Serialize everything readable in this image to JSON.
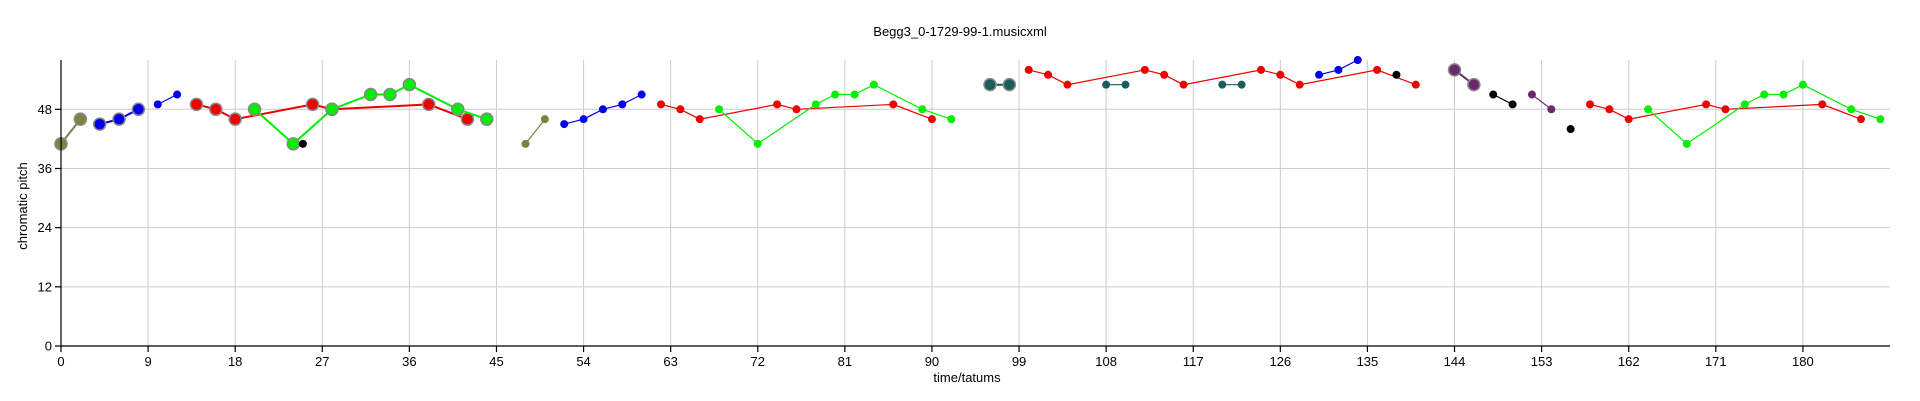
{
  "chart_data": {
    "type": "scatter",
    "title": "Begg3_0-1729-99-1.musicxml",
    "xlabel": "time/tatums",
    "ylabel": "chromatic pitch",
    "xlim": [
      0,
      189
    ],
    "ylim": [
      0,
      58
    ],
    "xticks": [
      0,
      9,
      18,
      27,
      36,
      45,
      54,
      63,
      72,
      81,
      90,
      99,
      108,
      117,
      126,
      135,
      144,
      153,
      162,
      171,
      180
    ],
    "yticks": [
      0,
      12,
      24,
      36,
      48
    ],
    "grid": true,
    "colors": {
      "olive": "#808040",
      "blue": "#0000ee",
      "red": "#ee0000",
      "green": "#00ee00",
      "black": "#000000",
      "teal": "#1a5c5c",
      "purple": "#6a2a6a"
    },
    "series": [
      {
        "color": "olive",
        "size": "large",
        "points": [
          [
            0,
            41
          ],
          [
            2,
            46
          ]
        ]
      },
      {
        "color": "blue",
        "size": "large",
        "points": [
          [
            4,
            45
          ],
          [
            6,
            46
          ],
          [
            8,
            48
          ]
        ]
      },
      {
        "color": "blue",
        "size": "small",
        "points": [
          [
            10,
            49
          ],
          [
            12,
            51
          ]
        ]
      },
      {
        "color": "red",
        "size": "large",
        "points": [
          [
            14,
            49
          ],
          [
            16,
            48
          ],
          [
            18,
            46
          ],
          [
            26,
            49
          ],
          [
            28,
            48
          ],
          [
            38,
            49
          ],
          [
            42,
            46
          ]
        ]
      },
      {
        "color": "green",
        "size": "large",
        "points": [
          [
            20,
            48
          ],
          [
            24,
            41
          ],
          [
            28,
            48
          ],
          [
            32,
            51
          ],
          [
            34,
            51
          ],
          [
            36,
            53
          ],
          [
            41,
            48
          ],
          [
            44,
            46
          ]
        ]
      },
      {
        "color": "black",
        "size": "small",
        "points": [
          [
            25,
            41
          ]
        ]
      },
      {
        "color": "olive",
        "size": "small",
        "points": [
          [
            48,
            41
          ],
          [
            50,
            46
          ]
        ]
      },
      {
        "color": "blue",
        "size": "small",
        "points": [
          [
            52,
            45
          ],
          [
            54,
            46
          ],
          [
            56,
            48
          ],
          [
            58,
            49
          ],
          [
            60,
            51
          ]
        ]
      },
      {
        "color": "red",
        "size": "small",
        "points": [
          [
            62,
            49
          ],
          [
            64,
            48
          ],
          [
            66,
            46
          ],
          [
            74,
            49
          ],
          [
            76,
            48
          ],
          [
            86,
            49
          ],
          [
            90,
            46
          ]
        ]
      },
      {
        "color": "green",
        "size": "small",
        "points": [
          [
            68,
            48
          ],
          [
            72,
            41
          ],
          [
            78,
            49
          ],
          [
            80,
            51
          ],
          [
            82,
            51
          ],
          [
            84,
            53
          ],
          [
            89,
            48
          ],
          [
            92,
            46
          ]
        ]
      },
      {
        "color": "teal",
        "size": "large",
        "points": [
          [
            96,
            53
          ],
          [
            98,
            53
          ]
        ]
      },
      {
        "color": "red",
        "size": "small",
        "points": [
          [
            100,
            56
          ],
          [
            102,
            55
          ],
          [
            104,
            53
          ],
          [
            112,
            56
          ],
          [
            114,
            55
          ],
          [
            116,
            53
          ],
          [
            124,
            56
          ],
          [
            126,
            55
          ],
          [
            128,
            53
          ],
          [
            136,
            56
          ],
          [
            140,
            53
          ]
        ]
      },
      {
        "color": "teal",
        "size": "small",
        "points": [
          [
            108,
            53
          ],
          [
            110,
            53
          ]
        ]
      },
      {
        "color": "teal",
        "size": "small",
        "points": [
          [
            120,
            53
          ],
          [
            122,
            53
          ]
        ]
      },
      {
        "color": "blue",
        "size": "small",
        "points": [
          [
            130,
            55
          ],
          [
            132,
            56
          ],
          [
            134,
            58
          ]
        ]
      },
      {
        "color": "black",
        "size": "small",
        "points": [
          [
            138,
            55
          ]
        ]
      },
      {
        "color": "purple",
        "size": "large",
        "points": [
          [
            144,
            56
          ],
          [
            146,
            53
          ]
        ]
      },
      {
        "color": "black",
        "size": "small",
        "points": [
          [
            148,
            51
          ],
          [
            150,
            49
          ]
        ]
      },
      {
        "color": "purple",
        "size": "small",
        "points": [
          [
            152,
            51
          ],
          [
            154,
            48
          ]
        ]
      },
      {
        "color": "black",
        "size": "small",
        "points": [
          [
            156,
            44
          ]
        ]
      },
      {
        "color": "red",
        "size": "small",
        "points": [
          [
            158,
            49
          ],
          [
            160,
            48
          ],
          [
            162,
            46
          ],
          [
            170,
            49
          ],
          [
            172,
            48
          ],
          [
            182,
            49
          ],
          [
            186,
            46
          ]
        ]
      },
      {
        "color": "green",
        "size": "small",
        "points": [
          [
            164,
            48
          ],
          [
            168,
            41
          ],
          [
            174,
            49
          ],
          [
            176,
            51
          ],
          [
            178,
            51
          ],
          [
            180,
            53
          ],
          [
            185,
            48
          ],
          [
            188,
            46
          ]
        ]
      }
    ]
  }
}
